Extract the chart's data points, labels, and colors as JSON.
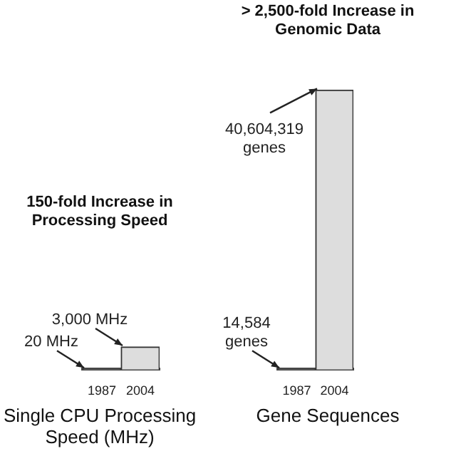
{
  "chart_data": [
    {
      "type": "bar",
      "title": "150-fold Increase in Processing Speed",
      "xlabel": "Single CPU Processing Speed (MHz)",
      "categories": [
        "1987",
        "2004"
      ],
      "values": [
        20,
        3000
      ],
      "colors": [
        "#777777",
        "#dddddd"
      ],
      "value_labels": [
        "20 MHz",
        "3,000 MHz"
      ]
    },
    {
      "type": "bar",
      "title": "> 2,500-fold Increase in Genomic Data",
      "xlabel": "Gene Sequences",
      "categories": [
        "1987",
        "2004"
      ],
      "values": [
        14584,
        40604319
      ],
      "colors": [
        "#777777",
        "#dddddd"
      ],
      "value_labels": [
        "14,584 genes",
        "40,604,319 genes"
      ]
    }
  ]
}
